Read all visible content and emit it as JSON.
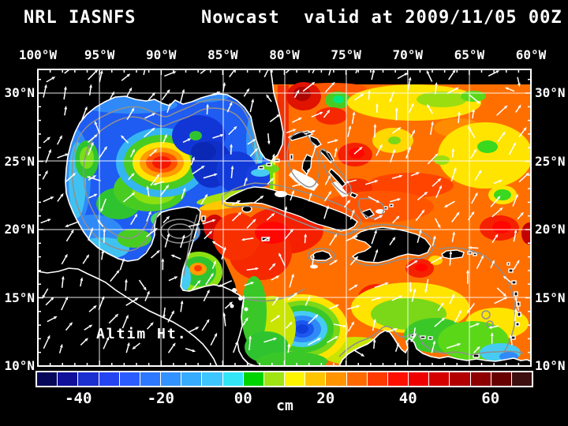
{
  "title": {
    "model": "NRL IASNFS",
    "run_type": "Nowcast",
    "valid": "valid at 2009/11/05 00Z"
  },
  "axes": {
    "lon_ticks": [
      "100°W",
      "95°W",
      "90°W",
      "85°W",
      "80°W",
      "75°W",
      "70°W",
      "65°W",
      "60°W"
    ],
    "lat_ticks": [
      "30°N",
      "25°N",
      "20°N",
      "15°N",
      "10°N"
    ]
  },
  "map": {
    "field_label": "Altim Ht."
  },
  "colorbar": {
    "unit": "cm",
    "min": -50,
    "max": 70,
    "step": 5,
    "colors": [
      "#07075a",
      "#10109b",
      "#1b2ed0",
      "#2444f2",
      "#2a5cff",
      "#2e78ff",
      "#3292ff",
      "#37acff",
      "#3dc6ff",
      "#32e6f6",
      "#00d400",
      "#a0e414",
      "#fdf500",
      "#ffc400",
      "#ff9400",
      "#ff6a00",
      "#ff3a00",
      "#ff0f00",
      "#ef0000",
      "#d40000",
      "#b20000",
      "#8e0000",
      "#670000",
      "#3d0f0f"
    ],
    "ticks": [
      {
        "value": -40,
        "label": "-40"
      },
      {
        "value": -20,
        "label": "-20"
      },
      {
        "value": 0,
        "label": "00"
      },
      {
        "value": 20,
        "label": "20"
      },
      {
        "value": 40,
        "label": "40"
      },
      {
        "value": 60,
        "label": "60"
      }
    ]
  }
}
